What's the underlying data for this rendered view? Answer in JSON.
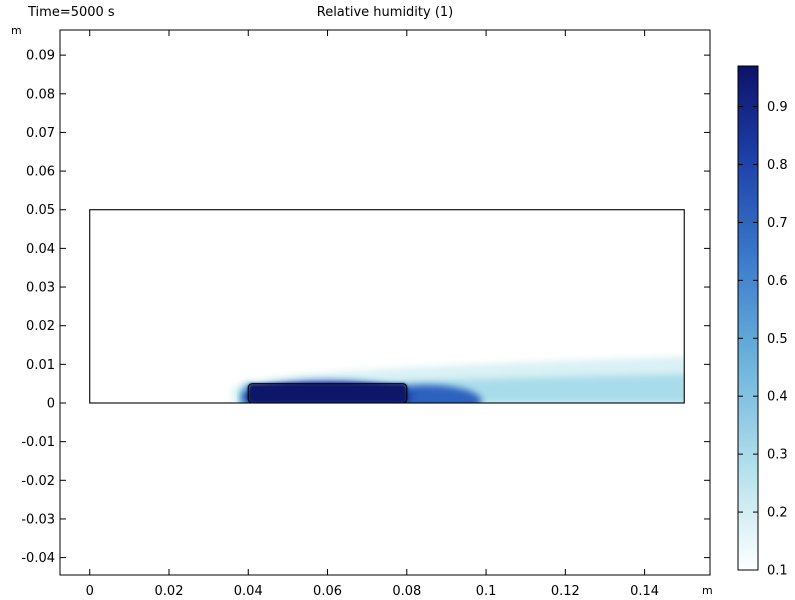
{
  "header": {
    "time_label": "Time=5000 s",
    "plot_title": "Relative humidity (1)"
  },
  "chart_data": {
    "type": "heatmap",
    "title": "Relative humidity (1)",
    "time_label": "Time=5000 s",
    "x_unit": "m",
    "y_unit": "m",
    "xlim": [
      -0.0075,
      0.1565
    ],
    "ylim": [
      -0.0445,
      0.0965
    ],
    "x_ticks": [
      0,
      0.02,
      0.04,
      0.06,
      0.08,
      0.1,
      0.12,
      0.14
    ],
    "x_tick_labels": [
      "0",
      "0.02",
      "0.04",
      "0.06",
      "0.08",
      "0.1",
      "0.12",
      "0.14"
    ],
    "y_ticks": [
      0.09,
      0.08,
      0.07,
      0.06,
      0.05,
      0.04,
      0.03,
      0.02,
      0.01,
      0,
      -0.01,
      -0.02,
      -0.03,
      -0.04
    ],
    "y_tick_labels": [
      "0.09",
      "0.08",
      "0.07",
      "0.06",
      "0.05",
      "0.04",
      "0.03",
      "0.02",
      "0.01",
      "0",
      "-0.01",
      "-0.02",
      "-0.03",
      "-0.04"
    ],
    "domain": {
      "x": [
        0,
        0.15
      ],
      "y": [
        0,
        0.05
      ]
    },
    "wet_patch": {
      "x": [
        0.04,
        0.08
      ],
      "y": [
        0,
        0.005
      ],
      "value": 0.97
    },
    "colorbar": {
      "range": [
        0.1,
        0.97
      ],
      "ticks": [
        0.9,
        0.8,
        0.7,
        0.6,
        0.5,
        0.4,
        0.3,
        0.2,
        0.1
      ],
      "tick_labels": [
        "0.9",
        "0.8",
        "0.7",
        "0.6",
        "0.5",
        "0.4",
        "0.3",
        "0.2",
        "0.1"
      ],
      "colormap": [
        "#ffffff",
        "#b3e1ec",
        "#6ab1db",
        "#3a7acb",
        "#1d3fa7",
        "#0c1269"
      ]
    },
    "field_description": "Humidity plume spreading downstream (+x) from wet patch at y=0, x=0.04–0.08; boundary layer thickening to ~0.01 m; background value 0.1.",
    "grid": false
  }
}
